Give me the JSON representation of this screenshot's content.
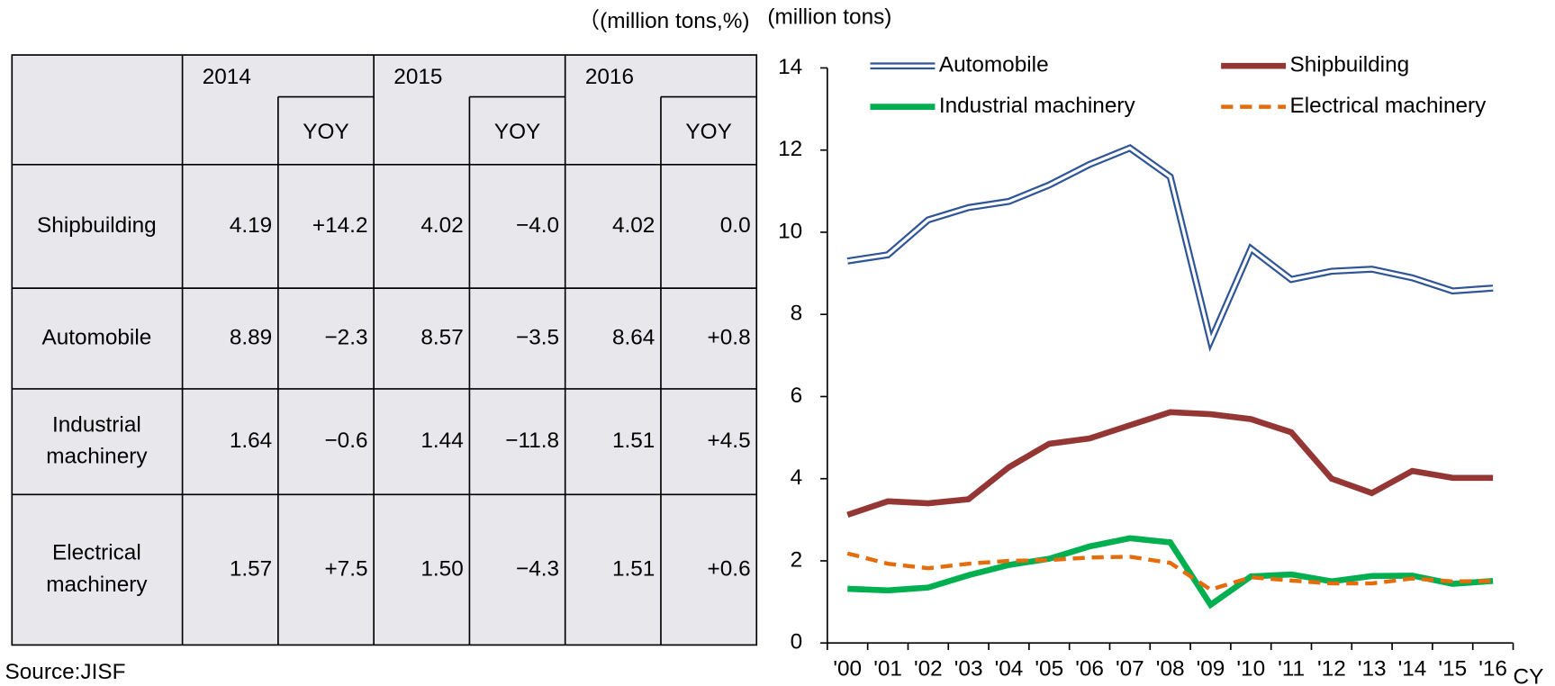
{
  "table": {
    "unit": "（(million tons,%)",
    "years": [
      "2014",
      "2015",
      "2016"
    ],
    "sub": [
      "YOY",
      "YOY",
      "YOY"
    ],
    "rows": [
      {
        "label": [
          "Shipbuilding"
        ],
        "cells": [
          "4.19",
          "+14.2",
          "4.02",
          "−4.0",
          "4.02",
          "0.0"
        ]
      },
      {
        "label": [
          "Automobile"
        ],
        "cells": [
          "8.89",
          "−2.3",
          "8.57",
          "−3.5",
          "8.64",
          "+0.8"
        ]
      },
      {
        "label": [
          "Industrial",
          "machinery"
        ],
        "cells": [
          "1.64",
          "−0.6",
          "1.44",
          "−11.8",
          "1.51",
          "+4.5"
        ]
      },
      {
        "label": [
          "Electrical",
          "machinery"
        ],
        "cells": [
          "1.57",
          "+7.5",
          "1.50",
          "−4.3",
          "1.51",
          "+0.6"
        ]
      }
    ],
    "source": "Source:JISF"
  },
  "chart_data": {
    "type": "line",
    "y_label": "(million tons)",
    "x_label": "CY",
    "categories": [
      "'00",
      "'01",
      "'02",
      "'03",
      "'04",
      "'05",
      "'06",
      "'07",
      "'08",
      "'09",
      "'10",
      "'11",
      "'12",
      "'13",
      "'14",
      "'15",
      "'16"
    ],
    "series": [
      {
        "name": "Automobile",
        "color": "#2f5597",
        "line_style": "double",
        "values": [
          9.3,
          9.45,
          10.3,
          10.6,
          10.75,
          11.15,
          11.65,
          12.05,
          11.35,
          7.35,
          9.6,
          8.85,
          9.05,
          9.1,
          8.89,
          8.57,
          8.64
        ]
      },
      {
        "name": "Shipbuilding",
        "color": "#943634",
        "line_style": "solid",
        "values": [
          3.12,
          3.45,
          3.4,
          3.5,
          4.28,
          4.85,
          4.98,
          5.3,
          5.62,
          5.57,
          5.45,
          5.13,
          4.0,
          3.65,
          4.19,
          4.02,
          4.02
        ]
      },
      {
        "name": "Industrial machinery",
        "color": "#00b050",
        "line_style": "solid",
        "values": [
          1.32,
          1.28,
          1.35,
          1.65,
          1.9,
          2.05,
          2.35,
          2.55,
          2.45,
          0.93,
          1.62,
          1.67,
          1.5,
          1.63,
          1.64,
          1.44,
          1.51
        ]
      },
      {
        "name": "Electrical machinery",
        "color": "#e46c0a",
        "line_style": "dashed",
        "values": [
          2.18,
          1.93,
          1.82,
          1.93,
          2.0,
          2.02,
          2.08,
          2.1,
          1.95,
          1.3,
          1.6,
          1.52,
          1.45,
          1.45,
          1.57,
          1.5,
          1.51
        ]
      }
    ],
    "ylim": [
      0,
      14
    ],
    "yticks": [
      0,
      2,
      4,
      6,
      8,
      10,
      12,
      14
    ],
    "grid": false,
    "negative_color": "#ff0000"
  }
}
